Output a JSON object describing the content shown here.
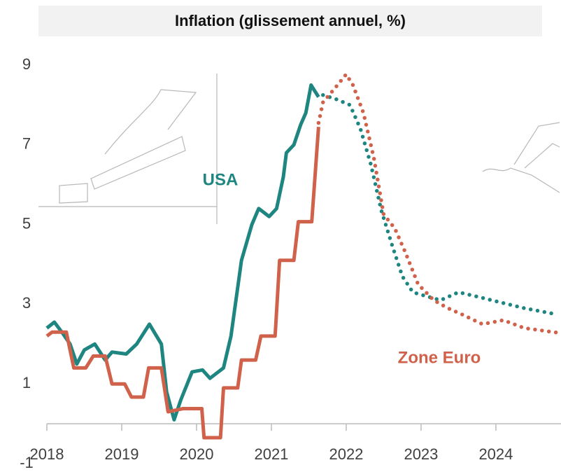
{
  "chart_data": {
    "type": "line",
    "title": "Inflation (glissement annuel, %)",
    "xlim": [
      2018,
      2024.87
    ],
    "xticks": [
      2018,
      2019,
      2020,
      2021,
      2022,
      2023,
      2024
    ],
    "ylim": [
      -1,
      9
    ],
    "yticks": [
      9,
      7,
      5,
      3,
      1,
      -1
    ],
    "series": [
      {
        "name": "USA",
        "color": "#1f8580",
        "x": [
          2018.0,
          2018.1,
          2018.2,
          2018.31,
          2018.4,
          2018.5,
          2018.64,
          2018.78,
          2018.87,
          2019.06,
          2019.2,
          2019.37,
          2019.53,
          2019.6,
          2019.7,
          2019.79,
          2019.94,
          2020.08,
          2020.18,
          2020.36,
          2020.46,
          2020.6,
          2020.74,
          2020.83,
          2020.97,
          2021.07,
          2021.16,
          2021.2,
          2021.3,
          2021.39,
          2021.46,
          2021.53,
          2021.63
        ],
        "values": [
          2.4,
          2.55,
          2.3,
          2.0,
          1.5,
          1.85,
          2.0,
          1.6,
          1.8,
          1.75,
          2.0,
          2.5,
          2.0,
          0.8,
          0.1,
          0.6,
          1.3,
          1.35,
          1.14,
          1.4,
          2.2,
          4.1,
          5.0,
          5.4,
          5.2,
          5.4,
          6.2,
          6.8,
          7.0,
          7.5,
          7.8,
          8.5,
          8.2
        ],
        "forecast_x": [
          2021.69,
          2021.86,
          2022.05,
          2022.19,
          2022.33,
          2022.47,
          2022.61,
          2022.75,
          2022.89,
          2023.07,
          2023.26,
          2023.5,
          2023.73,
          2024.01,
          2024.38,
          2024.8
        ],
        "forecast_values": [
          8.25,
          8.15,
          8.0,
          7.4,
          6.5,
          5.35,
          4.5,
          3.7,
          3.3,
          3.2,
          3.1,
          3.3,
          3.2,
          3.07,
          2.9,
          2.75
        ]
      },
      {
        "name": "Zone Euro",
        "color": "#d0614a",
        "x": [
          2018.0,
          2018.07,
          2018.26,
          2018.36,
          2018.52,
          2018.62,
          2018.78,
          2018.87,
          2019.04,
          2019.13,
          2019.29,
          2019.36,
          2019.53,
          2019.62,
          2019.82,
          2020.07,
          2020.1,
          2020.32,
          2020.36,
          2020.55,
          2020.6,
          2020.79,
          2020.86,
          2021.05,
          2021.11,
          2021.3,
          2021.36,
          2021.54,
          2021.63
        ],
        "values": [
          2.2,
          2.3,
          2.3,
          1.4,
          1.4,
          1.7,
          1.7,
          1.0,
          1.0,
          0.67,
          0.67,
          1.4,
          1.4,
          0.3,
          0.38,
          0.38,
          -0.35,
          -0.35,
          0.9,
          0.9,
          1.6,
          1.6,
          2.2,
          2.2,
          4.1,
          4.1,
          5.07,
          5.07,
          7.45
        ],
        "forecast_x": [
          2021.63,
          2021.69,
          2021.84,
          2022.0,
          2022.09,
          2022.23,
          2022.37,
          2022.5,
          2022.65,
          2022.79,
          2022.96,
          2023.17,
          2023.36,
          2023.54,
          2023.82,
          2024.1,
          2024.38,
          2024.85
        ],
        "forecast_values": [
          7.55,
          8.07,
          8.4,
          8.77,
          8.5,
          7.8,
          6.67,
          5.26,
          4.9,
          4.3,
          3.5,
          3.1,
          2.9,
          2.75,
          2.5,
          2.6,
          2.4,
          2.28
        ]
      }
    ]
  }
}
